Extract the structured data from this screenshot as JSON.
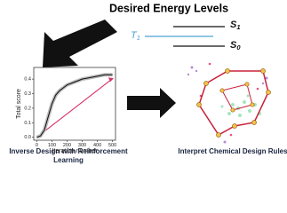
{
  "header": {
    "title": "Desired Energy Levels"
  },
  "levels": [
    {
      "symbol": "S",
      "subscript": "1"
    },
    {
      "symbol": "T",
      "subscript": "1"
    },
    {
      "symbol": "S",
      "subscript": "0"
    }
  ],
  "plot": {
    "x_label": "Iteration number",
    "y_label": "Total score",
    "x": [
      0,
      25,
      50,
      75,
      100,
      125,
      150,
      175,
      200,
      250,
      300,
      350,
      400,
      450,
      500
    ],
    "values": [
      0.0,
      0.01,
      0.05,
      0.14,
      0.23,
      0.29,
      0.32,
      0.34,
      0.36,
      0.38,
      0.4,
      0.41,
      0.42,
      0.43,
      0.43
    ],
    "xlim": [
      -20,
      520
    ],
    "ylim": [
      -0.02,
      0.48
    ],
    "xticks": [
      0,
      100,
      200,
      300,
      400,
      500
    ],
    "yticks": [
      {
        "value": 0,
        "label": "0.0"
      },
      {
        "value": 0.1,
        "label": "0.1"
      },
      {
        "value": 0.2,
        "label": "0.2"
      },
      {
        "value": 0.3,
        "label": "0.3"
      },
      {
        "value": 0.4,
        "label": "0.4"
      }
    ]
  },
  "captions": {
    "left": [
      "Inverse Design with Reinforcement",
      "Learning"
    ],
    "right": "Interpret Chemical Design Rules"
  }
}
